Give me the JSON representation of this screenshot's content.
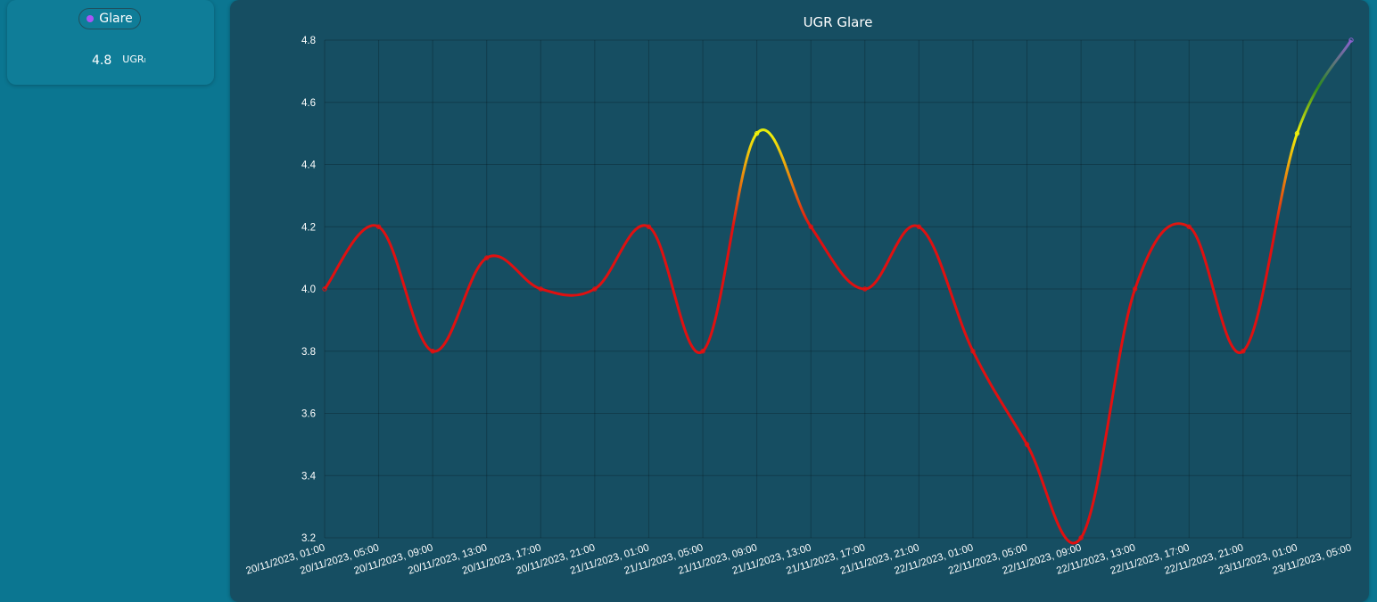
{
  "sensor": {
    "label": "Glare",
    "value": "4.8",
    "unit": "UGRₗ",
    "dot_color": "#a855f7"
  },
  "chart_data": {
    "type": "line",
    "title": "UGR Glare",
    "xlabel": "",
    "ylabel": "",
    "ylim": [
      3.2,
      4.8
    ],
    "yticks": [
      "3.2",
      "3.4",
      "3.6",
      "3.8",
      "4.0",
      "4.2",
      "4.4",
      "4.6",
      "4.8"
    ],
    "grid": true,
    "categories": [
      "20/11/2023, 01:00",
      "20/11/2023, 05:00",
      "20/11/2023, 09:00",
      "20/11/2023, 13:00",
      "20/11/2023, 17:00",
      "20/11/2023, 21:00",
      "21/11/2023, 01:00",
      "21/11/2023, 05:00",
      "21/11/2023, 09:00",
      "21/11/2023, 13:00",
      "21/11/2023, 17:00",
      "21/11/2023, 21:00",
      "22/11/2023, 01:00",
      "22/11/2023, 05:00",
      "22/11/2023, 09:00",
      "22/11/2023, 13:00",
      "22/11/2023, 17:00",
      "22/11/2023, 21:00",
      "23/11/2023, 01:00",
      "23/11/2023, 05:00"
    ],
    "series": [
      {
        "values": [
          4.0,
          4.2,
          3.8,
          4.1,
          4.0,
          4.0,
          4.2,
          3.8,
          4.5,
          4.2,
          4.0,
          4.2,
          3.8,
          3.5,
          3.2,
          4.0,
          4.2,
          3.8,
          4.5,
          4.8
        ]
      }
    ],
    "color_stops": [
      {
        "value": 4.2,
        "color": "#e01010"
      },
      {
        "value": 4.5,
        "color": "#f2f20a"
      },
      {
        "value": 4.65,
        "color": "#2e8b1e"
      },
      {
        "value": 4.8,
        "color": "#8c60d0"
      }
    ]
  }
}
